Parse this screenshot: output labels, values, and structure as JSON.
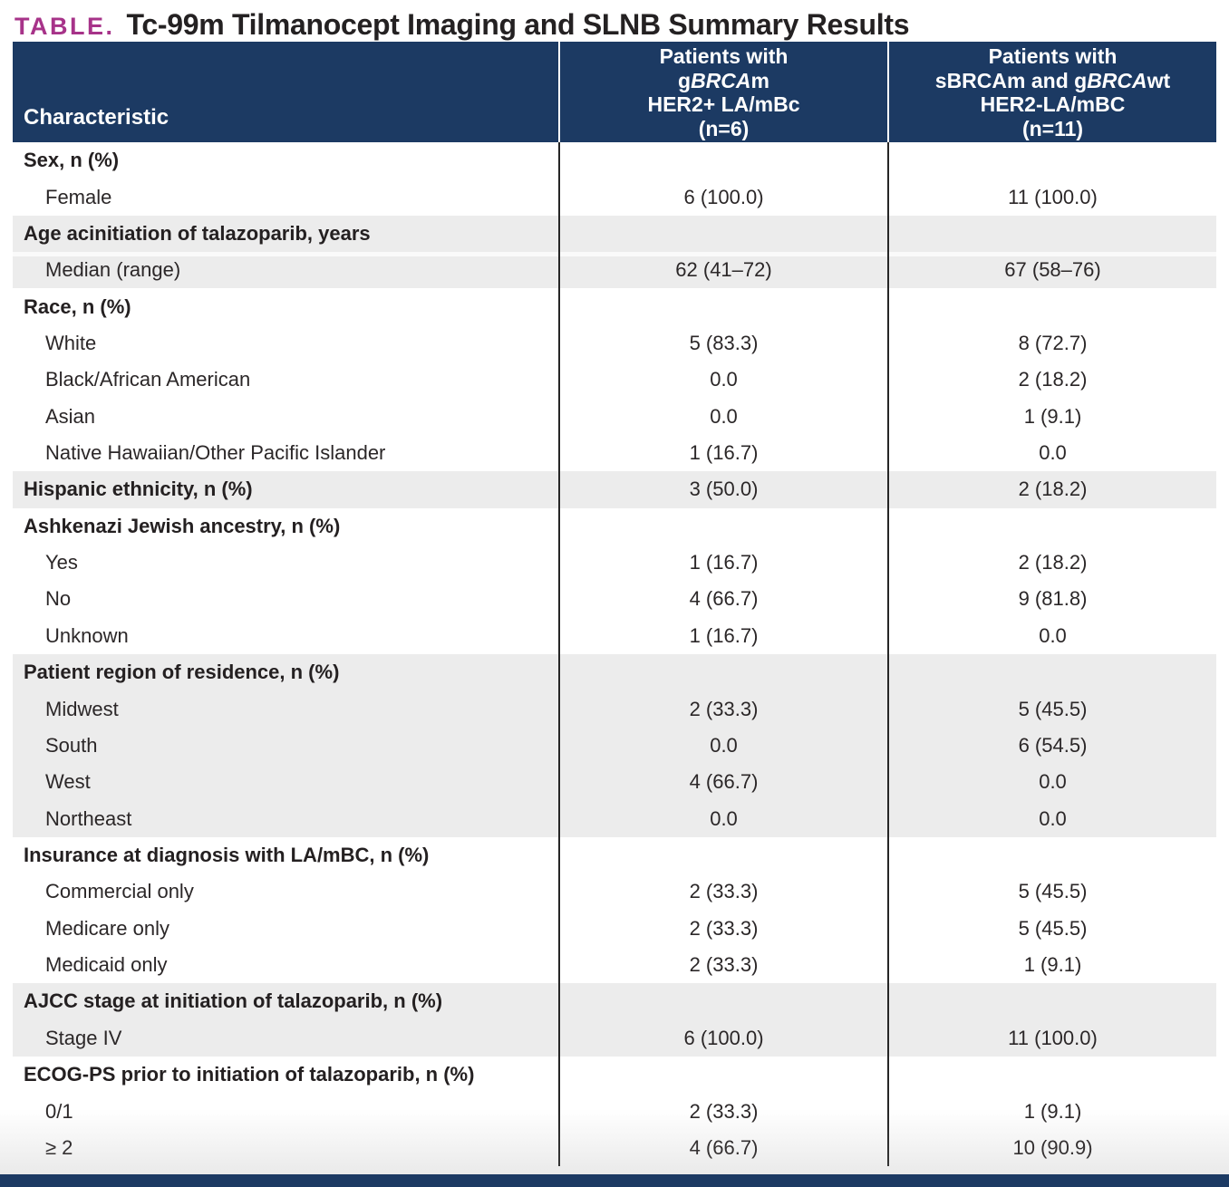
{
  "title": {
    "label": "TABLE.",
    "text": "Tc-99m Tilmanocept Imaging and SLNB Summary Results"
  },
  "colors": {
    "header_navy": "#1C3A63",
    "accent_magenta": "#A73389",
    "row_shade_gray": "#ECECEC",
    "divider_dark": "#262626",
    "text_dark": "#242021"
  },
  "table": {
    "header": {
      "characteristic": "Characteristic",
      "columns": [
        {
          "name": "gBRCAm HER2+ LA/mBc (n=6)",
          "lines": [
            [
              {
                "t": "Patients with"
              }
            ],
            [
              {
                "t": "g"
              },
              {
                "t": "BRCA",
                "i": 1
              },
              {
                "t": "m"
              }
            ],
            [
              {
                "t": "HER2+ LA/mBc"
              }
            ],
            [
              {
                "t": "(n=6)"
              }
            ]
          ]
        },
        {
          "name": "sBRCAm and gBRCAwt HER2-LA/mBC (n=11)",
          "lines": [
            [
              {
                "t": "Patients with"
              }
            ],
            [
              {
                "t": "sBRCAm and g"
              },
              {
                "t": "BRCA",
                "i": 1
              },
              {
                "t": "wt"
              }
            ],
            [
              {
                "t": "HER2-LA/mBC"
              }
            ],
            [
              {
                "t": "(n=11)"
              }
            ]
          ]
        }
      ]
    },
    "rows": [
      {
        "label": "Sex, n (%)",
        "type": "category",
        "shade": false,
        "col1": "",
        "col2": ""
      },
      {
        "label": "Female",
        "type": "sub",
        "shade": false,
        "col1": "6 (100.0)",
        "col2": "11 (100.0)"
      },
      {
        "label": "Age acinitiation of talazoparib, years",
        "type": "category",
        "shade": true,
        "col1": "",
        "col2": ""
      },
      {
        "label": "Median (range)",
        "type": "sub",
        "shade": true,
        "sep": true,
        "col1": "62 (41–72)",
        "col2": "67 (58–76)"
      },
      {
        "label": "Race, n (%)",
        "type": "category",
        "shade": false,
        "col1": "",
        "col2": ""
      },
      {
        "label": "White",
        "type": "sub",
        "shade": false,
        "col1": "5 (83.3)",
        "col2": "8 (72.7)"
      },
      {
        "label": "Black/African American",
        "type": "sub",
        "shade": false,
        "col1": "0.0",
        "col2": "2 (18.2)"
      },
      {
        "label": "Asian",
        "type": "sub",
        "shade": false,
        "col1": "0.0",
        "col2": "1 (9.1)"
      },
      {
        "label": "Native Hawaiian/Other Pacific Islander",
        "type": "sub",
        "shade": false,
        "col1": "1 (16.7)",
        "col2": "0.0"
      },
      {
        "label": "Hispanic ethnicity, n (%)",
        "type": "category",
        "shade": true,
        "col1": "3 (50.0)",
        "col2": "2 (18.2)"
      },
      {
        "label": "Ashkenazi Jewish ancestry, n (%)",
        "type": "category",
        "shade": false,
        "col1": "",
        "col2": ""
      },
      {
        "label": "Yes",
        "type": "sub",
        "shade": false,
        "col1": "1 (16.7)",
        "col2": "2 (18.2)"
      },
      {
        "label": "No",
        "type": "sub",
        "shade": false,
        "col1": "4 (66.7)",
        "col2": "9 (81.8)"
      },
      {
        "label": "Unknown",
        "type": "sub",
        "shade": false,
        "col1": "1 (16.7)",
        "col2": "0.0"
      },
      {
        "label": "Patient region of residence, n (%)",
        "type": "category",
        "shade": true,
        "col1": "",
        "col2": ""
      },
      {
        "label": "Midwest",
        "type": "sub",
        "shade": true,
        "col1": "2 (33.3)",
        "col2": "5 (45.5)"
      },
      {
        "label": "South",
        "type": "sub",
        "shade": true,
        "col1": "0.0",
        "col2": "6 (54.5)"
      },
      {
        "label": "West",
        "type": "sub",
        "shade": true,
        "col1": "4 (66.7)",
        "col2": "0.0"
      },
      {
        "label": "Northeast",
        "type": "sub",
        "shade": true,
        "col1": "0.0",
        "col2": "0.0"
      },
      {
        "label": "Insurance at diagnosis with LA/mBC, n (%)",
        "type": "category",
        "shade": false,
        "col1": "",
        "col2": ""
      },
      {
        "label": "Commercial only",
        "type": "sub",
        "shade": false,
        "col1": "2 (33.3)",
        "col2": "5 (45.5)"
      },
      {
        "label": "Medicare only",
        "type": "sub",
        "shade": false,
        "col1": "2 (33.3)",
        "col2": "5 (45.5)"
      },
      {
        "label": "Medicaid only",
        "type": "sub",
        "shade": false,
        "col1": "2 (33.3)",
        "col2": "1 (9.1)"
      },
      {
        "label": "AJCC stage at initiation of talazoparib, n (%)",
        "type": "category",
        "shade": true,
        "col1": "",
        "col2": ""
      },
      {
        "label": "Stage IV",
        "type": "sub",
        "shade": true,
        "col1": "6 (100.0)",
        "col2": "11 (100.0)"
      },
      {
        "label": "ECOG-PS prior to initiation of talazoparib, n (%)",
        "type": "category",
        "shade": false,
        "col1": "",
        "col2": ""
      },
      {
        "label": "0/1",
        "type": "sub",
        "shade": false,
        "col1": "2 (33.3)",
        "col2": "1 (9.1)"
      },
      {
        "label": "≥ 2",
        "type": "sub",
        "shade": false,
        "col1": "4 (66.7)",
        "col2": "10 (90.9)"
      }
    ]
  }
}
